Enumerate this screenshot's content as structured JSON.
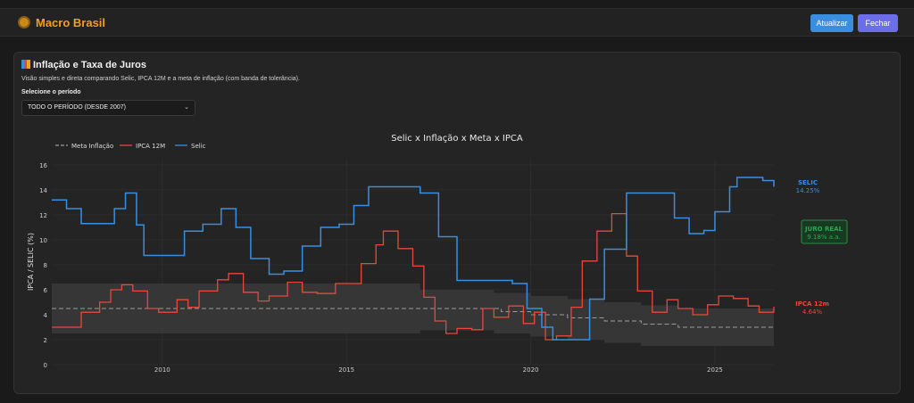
{
  "app": {
    "brand": "Macro Brasil",
    "logo_icon": "shield-logo-icon"
  },
  "toolbar": {
    "refresh_label": "Atualizar",
    "close_label": "Fechar"
  },
  "panel": {
    "title": "Inflação e Taxa de Juros",
    "title_icon": "chart-icon",
    "description": "Visão simples e direta comparando Selic, IPCA 12M e a meta de inflação (com banda de tolerância).",
    "period_label": "Selecione o período",
    "period_selected": "TODO O PERÍODO (DESDE 2007)"
  },
  "colors": {
    "selic": "#3a8ee0",
    "ipca": "#e8483a",
    "meta": "#999999",
    "band": "#3a3a3a",
    "juro_real": "#2ea84f"
  },
  "chart_data": {
    "type": "line",
    "title": "Selic x Inflação x Meta x IPCA",
    "ylabel": "IPCA / SELIC (%)",
    "xlabel": "",
    "xlim": [
      2007.0,
      2026.6
    ],
    "ylim": [
      0,
      16.5
    ],
    "xticks": [
      2010,
      2015,
      2020,
      2025
    ],
    "yticks": [
      0,
      2,
      4,
      6,
      8,
      10,
      12,
      14,
      16
    ],
    "grid": true,
    "legend": "top-left",
    "legend_entries": [
      "Meta Inflação",
      "IPCA 12M",
      "Selic"
    ],
    "series": [
      {
        "name": "Selic",
        "points": [
          [
            2007.0,
            13.2
          ],
          [
            2007.4,
            12.5
          ],
          [
            2007.8,
            11.3
          ],
          [
            2008.3,
            11.3
          ],
          [
            2008.7,
            12.5
          ],
          [
            2009.0,
            13.75
          ],
          [
            2009.3,
            11.2
          ],
          [
            2009.5,
            8.75
          ],
          [
            2010.3,
            8.75
          ],
          [
            2010.6,
            10.7
          ],
          [
            2011.1,
            11.25
          ],
          [
            2011.6,
            12.5
          ],
          [
            2012.0,
            11.0
          ],
          [
            2012.4,
            8.5
          ],
          [
            2012.9,
            7.25
          ],
          [
            2013.3,
            7.5
          ],
          [
            2013.8,
            9.5
          ],
          [
            2014.3,
            11.0
          ],
          [
            2014.8,
            11.25
          ],
          [
            2015.2,
            12.75
          ],
          [
            2015.6,
            14.25
          ],
          [
            2016.7,
            14.25
          ],
          [
            2017.0,
            13.75
          ],
          [
            2017.5,
            10.25
          ],
          [
            2018.0,
            6.75
          ],
          [
            2019.5,
            6.5
          ],
          [
            2019.9,
            4.5
          ],
          [
            2020.3,
            3.0
          ],
          [
            2020.6,
            2.0
          ],
          [
            2021.2,
            2.0
          ],
          [
            2021.6,
            5.25
          ],
          [
            2022.0,
            9.25
          ],
          [
            2022.6,
            13.75
          ],
          [
            2023.5,
            13.75
          ],
          [
            2023.9,
            11.75
          ],
          [
            2024.3,
            10.5
          ],
          [
            2024.7,
            10.75
          ],
          [
            2025.0,
            12.25
          ],
          [
            2025.4,
            14.25
          ],
          [
            2025.6,
            15.0
          ],
          [
            2026.0,
            15.0
          ],
          [
            2026.3,
            14.75
          ],
          [
            2026.6,
            14.25
          ]
        ]
      },
      {
        "name": "IPCA 12M",
        "points": [
          [
            2007.0,
            3.0
          ],
          [
            2007.4,
            3.0
          ],
          [
            2007.8,
            4.2
          ],
          [
            2008.3,
            5.0
          ],
          [
            2008.6,
            6.0
          ],
          [
            2008.9,
            6.4
          ],
          [
            2009.2,
            5.9
          ],
          [
            2009.6,
            4.5
          ],
          [
            2009.9,
            4.2
          ],
          [
            2010.4,
            5.2
          ],
          [
            2010.7,
            4.6
          ],
          [
            2011.0,
            5.9
          ],
          [
            2011.5,
            6.8
          ],
          [
            2011.8,
            7.3
          ],
          [
            2012.2,
            5.8
          ],
          [
            2012.6,
            5.1
          ],
          [
            2012.9,
            5.5
          ],
          [
            2013.4,
            6.6
          ],
          [
            2013.8,
            5.8
          ],
          [
            2014.2,
            5.7
          ],
          [
            2014.7,
            6.5
          ],
          [
            2015.0,
            6.5
          ],
          [
            2015.4,
            8.1
          ],
          [
            2015.8,
            9.6
          ],
          [
            2016.0,
            10.7
          ],
          [
            2016.4,
            9.3
          ],
          [
            2016.8,
            7.9
          ],
          [
            2017.1,
            5.4
          ],
          [
            2017.4,
            3.5
          ],
          [
            2017.7,
            2.5
          ],
          [
            2018.0,
            2.9
          ],
          [
            2018.4,
            2.8
          ],
          [
            2018.7,
            4.5
          ],
          [
            2019.0,
            3.8
          ],
          [
            2019.4,
            4.7
          ],
          [
            2019.8,
            3.3
          ],
          [
            2020.1,
            4.2
          ],
          [
            2020.4,
            2.0
          ],
          [
            2020.7,
            2.3
          ],
          [
            2021.1,
            4.6
          ],
          [
            2021.4,
            8.3
          ],
          [
            2021.8,
            10.7
          ],
          [
            2022.2,
            12.1
          ],
          [
            2022.6,
            8.7
          ],
          [
            2022.9,
            5.9
          ],
          [
            2023.3,
            4.2
          ],
          [
            2023.7,
            5.2
          ],
          [
            2024.0,
            4.5
          ],
          [
            2024.4,
            4.0
          ],
          [
            2024.8,
            4.8
          ],
          [
            2025.1,
            5.5
          ],
          [
            2025.5,
            5.3
          ],
          [
            2025.9,
            4.7
          ],
          [
            2026.2,
            4.2
          ],
          [
            2026.6,
            4.64
          ]
        ]
      },
      {
        "name": "Meta Inflação",
        "points": [
          [
            2007.0,
            4.5
          ],
          [
            2019.0,
            4.5
          ],
          [
            2019.2,
            4.25
          ],
          [
            2020.0,
            4.0
          ],
          [
            2021.0,
            3.75
          ],
          [
            2022.0,
            3.5
          ],
          [
            2023.0,
            3.25
          ],
          [
            2024.0,
            3.0
          ],
          [
            2026.6,
            3.0
          ]
        ]
      },
      {
        "name": "Banda de tolerância",
        "bands": [
          [
            2007.0,
            2.5,
            6.5
          ],
          [
            2017.0,
            2.5,
            6.0
          ],
          [
            2019.0,
            2.75,
            5.75
          ],
          [
            2020.0,
            2.5,
            5.5
          ],
          [
            2021.0,
            2.25,
            5.25
          ],
          [
            2022.0,
            2.0,
            5.0
          ],
          [
            2023.0,
            1.75,
            4.75
          ],
          [
            2024.0,
            1.5,
            4.5
          ],
          [
            2026.6,
            1.5,
            4.5
          ]
        ]
      }
    ],
    "annotations": [
      {
        "label": "SELIC",
        "value": "14.25%"
      },
      {
        "label": "JURO REAL",
        "value": "9.18% a.a."
      },
      {
        "label": "IPCA 12m",
        "value": "4.64%"
      }
    ]
  }
}
